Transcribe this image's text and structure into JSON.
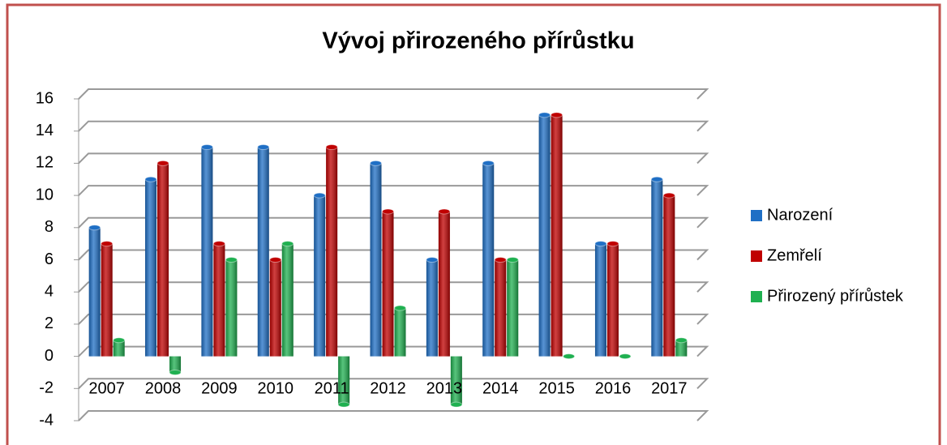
{
  "chart_data": {
    "type": "bar",
    "title": "Vývoj přirozeného přírůstku",
    "categories": [
      "2007",
      "2008",
      "2009",
      "2010",
      "2011",
      "2012",
      "2013",
      "2014",
      "2015",
      "2016",
      "2017"
    ],
    "series": [
      {
        "name": "Narození",
        "color": "#1f6fc5",
        "values": [
          8,
          11,
          13,
          13,
          10,
          12,
          6,
          12,
          15,
          7,
          11
        ]
      },
      {
        "name": "Zemřelí",
        "color": "#c00000",
        "values": [
          7,
          12,
          7,
          6,
          13,
          9,
          9,
          6,
          15,
          7,
          10
        ]
      },
      {
        "name": "Přirozený přírůstek",
        "color": "#1fb050",
        "values": [
          1,
          -1,
          6,
          7,
          -3,
          3,
          -3,
          6,
          0,
          0,
          1
        ]
      }
    ],
    "ylim": [
      -4,
      16
    ],
    "yticks": [
      -4,
      -2,
      0,
      2,
      4,
      6,
      8,
      10,
      12,
      14,
      16
    ],
    "grid": true,
    "legend": "right"
  }
}
